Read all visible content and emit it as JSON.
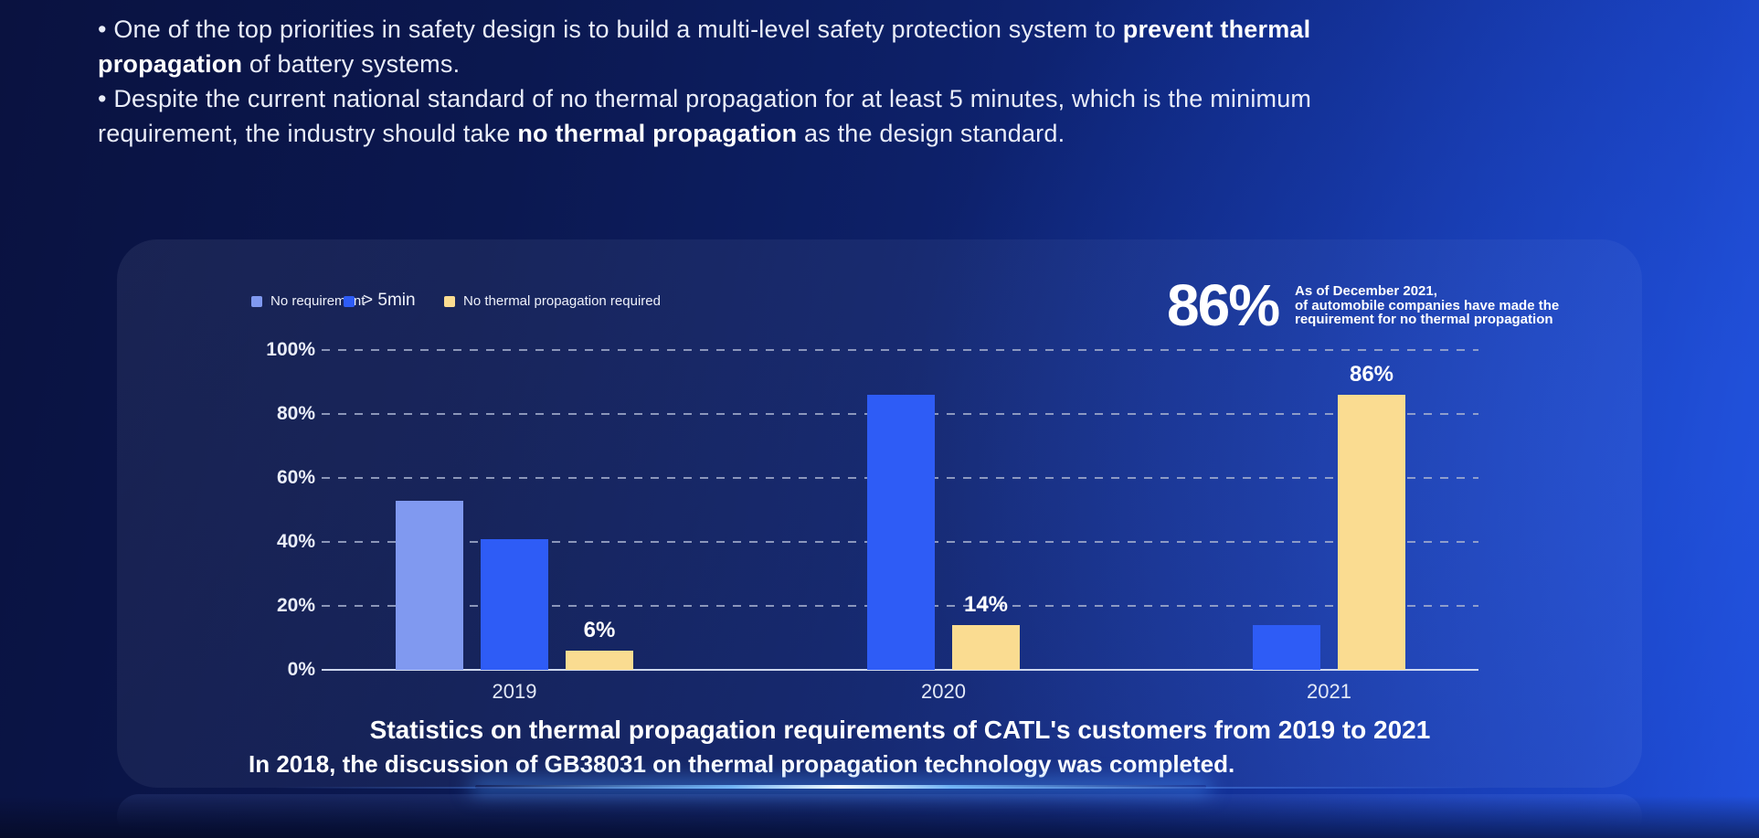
{
  "intro": {
    "lines": [
      {
        "segments": [
          {
            "t": "• One of the top priorities in safety design is to build a multi-level safety protection system to ",
            "b": false
          },
          {
            "t": "prevent thermal",
            "b": true
          }
        ]
      },
      {
        "segments": [
          {
            "t": "propagation",
            "b": true
          },
          {
            "t": " of battery systems.",
            "b": false
          }
        ]
      },
      {
        "segments": [
          {
            "t": "• Despite the current national standard of no thermal propagation for at least 5 minutes, which is the minimum",
            "b": false
          }
        ]
      },
      {
        "segments": [
          {
            "t": "requirement, the industry should take ",
            "b": false
          },
          {
            "t": "no thermal propagation",
            "b": true
          },
          {
            "t": " as the design standard.",
            "b": false
          }
        ]
      }
    ]
  },
  "stat": {
    "value": "86%",
    "lines": [
      "As of December 2021,",
      "of automobile companies have made the",
      "requirement for no thermal propagation"
    ]
  },
  "chart_data": {
    "type": "bar",
    "title": "Statistics on thermal propagation requirements of CATL's customers from 2019 to 2021",
    "footnote": "In 2018, the discussion of GB38031 on thermal propagation technology was completed.",
    "categories": [
      "2019",
      "2020",
      "2021"
    ],
    "series": [
      {
        "name": "No requirement",
        "color": "#8099F0",
        "values": [
          53,
          0,
          0
        ]
      },
      {
        "name": "> 5min",
        "color": "#2E5CF6",
        "values": [
          41,
          86,
          14
        ]
      },
      {
        "name": "No thermal propagation required",
        "color": "#FADC91",
        "values": [
          6,
          14,
          86
        ],
        "value_labels": [
          "6%",
          "14%",
          "86%"
        ]
      }
    ],
    "xlabel": "",
    "ylabel": "",
    "ylim": [
      0,
      100
    ],
    "yticks": [
      0,
      20,
      40,
      60,
      80,
      100
    ],
    "ytick_labels": [
      "0%",
      "20%",
      "40%",
      "60%",
      "80%",
      "100%"
    ],
    "grid": "horizontal-dashed",
    "legend_position": "top-left",
    "annotation": "86% — As of December 2021, of automobile companies have made the requirement for no thermal propagation"
  }
}
